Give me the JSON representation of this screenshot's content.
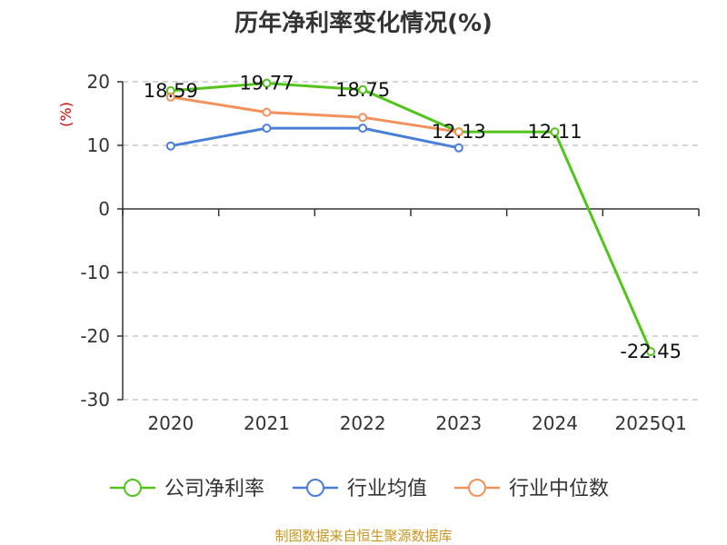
{
  "chart_data": {
    "type": "line",
    "title": "历年净利率变化情况(%)",
    "ylabel": "(%)",
    "categories": [
      "2020",
      "2021",
      "2022",
      "2023",
      "2024",
      "2025Q1"
    ],
    "ylim": [
      -30,
      20
    ],
    "yticks": [
      20,
      10,
      0,
      -10,
      -20,
      -30
    ],
    "grid": true,
    "legend_position": "bottom",
    "series": [
      {
        "name": "公司净利率",
        "color": "#52c41a",
        "values": [
          18.59,
          19.77,
          18.75,
          12.13,
          12.11,
          -22.45
        ]
      },
      {
        "name": "行业均值",
        "color": "#4a7fd8",
        "values": [
          9.9,
          12.7,
          12.7,
          9.6,
          null,
          null
        ]
      },
      {
        "name": "行业中位数",
        "color": "#f4915a",
        "values": [
          17.6,
          15.2,
          14.4,
          12.1,
          null,
          null
        ]
      }
    ],
    "data_labels": [
      {
        "series": 0,
        "index": 0,
        "text": "18.59"
      },
      {
        "series": 0,
        "index": 1,
        "text": "19.77"
      },
      {
        "series": 0,
        "index": 2,
        "text": "18.75"
      },
      {
        "series": 0,
        "index": 3,
        "text": "12.13"
      },
      {
        "series": 0,
        "index": 4,
        "text": "12.11"
      },
      {
        "series": 0,
        "index": 5,
        "text": "-22.45"
      }
    ]
  },
  "footer": {
    "source": "制图数据来自恒生聚源数据库"
  }
}
